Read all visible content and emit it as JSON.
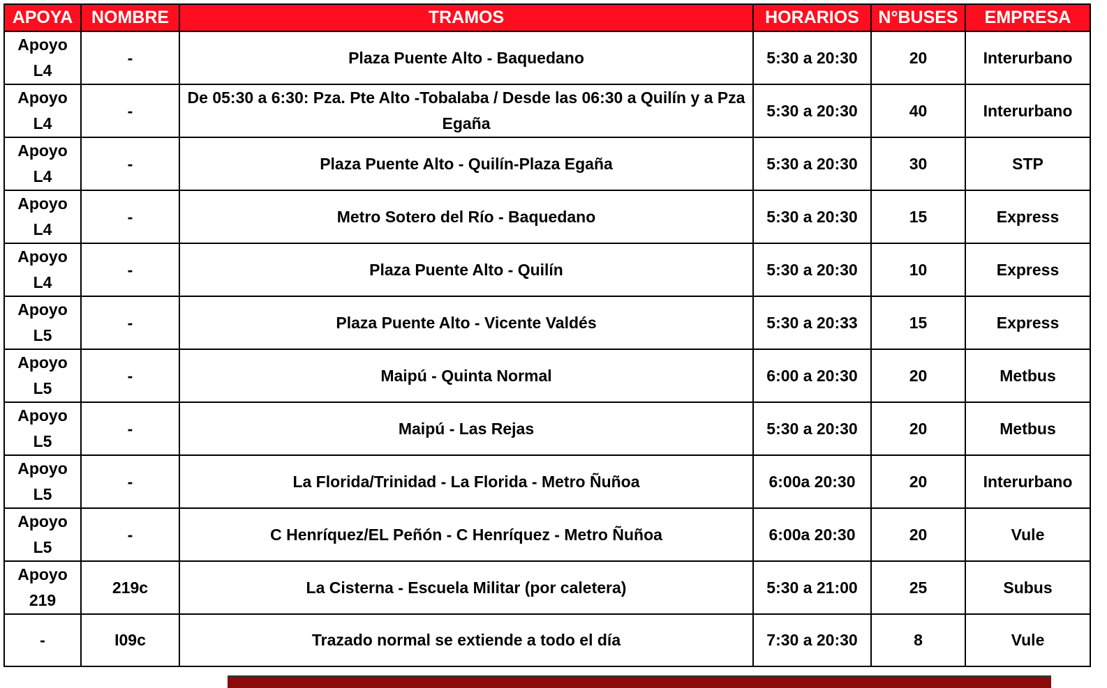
{
  "header_color": "#fe0e1e",
  "columns": [
    "APOYA",
    "NOMBRE",
    "TRAMOS",
    "HORARIOS",
    "N°BUSES",
    "EMPRESA"
  ],
  "rows": [
    {
      "apoya": "Apoyo L4",
      "nombre": "-",
      "tramos": "Plaza Puente Alto - Baquedano",
      "horarios": "5:30 a 20:30",
      "buses": "20",
      "empresa": "Interurbano"
    },
    {
      "apoya": "Apoyo L4",
      "nombre": "-",
      "tramos": "De 05:30  a 6:30: Pza. Pte Alto -Tobalaba / Desde las 06:30 a Quilín y a Pza Egaña",
      "horarios": "5:30 a 20:30",
      "buses": "40",
      "empresa": "Interurbano"
    },
    {
      "apoya": "Apoyo L4",
      "nombre": "-",
      "tramos": "Plaza Puente Alto - Quilín-Plaza Egaña",
      "horarios": "5:30 a 20:30",
      "buses": "30",
      "empresa": "STP"
    },
    {
      "apoya": "Apoyo L4",
      "nombre": "-",
      "tramos": "Metro Sotero del Río - Baquedano",
      "horarios": "5:30 a 20:30",
      "buses": "15",
      "empresa": "Express"
    },
    {
      "apoya": "Apoyo L4",
      "nombre": "-",
      "tramos": "Plaza Puente Alto - Quilín",
      "horarios": "5:30 a 20:30",
      "buses": "10",
      "empresa": "Express"
    },
    {
      "apoya": "Apoyo L5",
      "nombre": "-",
      "tramos": "Plaza Puente Alto - Vicente Valdés",
      "horarios": "5:30 a 20:33",
      "buses": "15",
      "empresa": "Express"
    },
    {
      "apoya": "Apoyo L5",
      "nombre": "-",
      "tramos": "Maipú - Quinta Normal",
      "horarios": "6:00 a 20:30",
      "buses": "20",
      "empresa": "Metbus"
    },
    {
      "apoya": "Apoyo L5",
      "nombre": "-",
      "tramos": "Maipú - Las Rejas",
      "horarios": "5:30 a 20:30",
      "buses": "20",
      "empresa": "Metbus"
    },
    {
      "apoya": "Apoyo L5",
      "nombre": "-",
      "tramos": "La Florida/Trinidad - La Florida - Metro Ñuñoa",
      "horarios": "6:00a 20:30",
      "buses": "20",
      "empresa": "Interurbano"
    },
    {
      "apoya": "Apoyo L5",
      "nombre": "-",
      "tramos": "C Henríquez/EL Peñón - C Henríquez - Metro Ñuñoa",
      "horarios": "6:00a 20:30",
      "buses": "20",
      "empresa": "Vule"
    },
    {
      "apoya": "Apoyo 219",
      "nombre": "219c",
      "tramos": "La Cisterna - Escuela Militar (por caletera)",
      "horarios": "5:30 a 21:00",
      "buses": "25",
      "empresa": "Subus"
    },
    {
      "apoya": "-",
      "nombre": "I09c",
      "tramos": "Trazado normal se extiende a todo el día",
      "horarios": "7:30 a 20:30",
      "buses": "8",
      "empresa": "Vule"
    }
  ]
}
